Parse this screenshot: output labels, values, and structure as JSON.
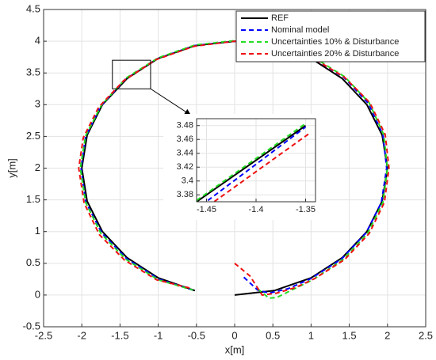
{
  "chart_data": [
    {
      "type": "line",
      "xlabel": "x[m]",
      "ylabel": "y[m]",
      "xlim": [
        -2.5,
        2.5
      ],
      "xticks": [
        -2.5,
        -2,
        -1.5,
        -1,
        -0.5,
        0,
        0.5,
        1,
        1.5,
        2,
        2.5
      ],
      "ylim": [
        -0.5,
        4.5
      ],
      "yticks": [
        -0.5,
        0,
        0.5,
        1,
        1.5,
        2,
        2.5,
        3,
        3.5,
        4,
        4.5
      ],
      "grid": true,
      "legend": "northeast",
      "series": [
        {
          "name": "REF",
          "color": "#000000",
          "dash": "solid",
          "x": [
            0,
            0.52,
            1,
            1.41,
            1.73,
            1.93,
            2,
            1.93,
            1.73,
            1.41,
            1,
            0.52,
            0,
            -0.52,
            -1,
            -1.41,
            -1.73,
            -1.93,
            -2,
            -1.93,
            -1.73,
            -1.41,
            -1,
            -0.52
          ],
          "values": [
            0,
            0.07,
            0.27,
            0.59,
            1,
            1.48,
            2,
            2.52,
            3,
            3.41,
            3.73,
            3.93,
            4,
            3.93,
            3.73,
            3.41,
            3,
            2.52,
            2,
            1.48,
            1,
            0.59,
            0.27,
            0.07
          ]
        },
        {
          "name": "Nominal model",
          "color": "#0000ff",
          "dash": "dashed",
          "x": [
            0.12,
            0.3,
            0.45,
            0.7,
            1,
            1.4,
            1.72,
            1.92,
            1.99,
            1.94,
            1.75,
            1.43,
            1.02,
            0.53,
            0,
            -0.53,
            -1.02,
            -1.43,
            -1.75,
            -1.95,
            -2.01,
            -1.95,
            -1.74,
            -1.41,
            -0.99,
            -0.55
          ],
          "values": [
            0.28,
            0.08,
            0.03,
            0.1,
            0.26,
            0.57,
            0.98,
            1.46,
            2,
            2.53,
            3.02,
            3.43,
            3.74,
            3.94,
            4,
            3.93,
            3.72,
            3.4,
            2.98,
            2.5,
            2,
            1.47,
            0.98,
            0.57,
            0.25,
            0.08
          ]
        },
        {
          "name": "Uncertainties 10% & Disturbance",
          "color": "#22dd22",
          "dash": "dashed",
          "x": [
            0.3,
            0.45,
            0.55,
            0.75,
            1.02,
            1.42,
            1.74,
            1.94,
            2.0,
            1.95,
            1.76,
            1.44,
            1.03,
            0.54,
            0,
            -0.52,
            -1.0,
            -1.42,
            -1.74,
            -1.95,
            -2.02,
            -1.95,
            -1.75,
            -1.42,
            -1.0,
            -0.55
          ],
          "values": [
            0.1,
            -0.05,
            -0.04,
            0.08,
            0.24,
            0.56,
            0.97,
            1.46,
            2,
            2.53,
            3.03,
            3.44,
            3.75,
            3.95,
            4.01,
            3.94,
            3.74,
            3.42,
            3.0,
            2.51,
            2,
            1.46,
            0.97,
            0.56,
            0.24,
            0.08
          ]
        },
        {
          "name": "Uncertainties 20% & Disturbance",
          "color": "#ee1111",
          "dash": "dashed",
          "x": [
            0,
            0.2,
            0.36,
            0.55,
            0.8,
            1.05,
            1.44,
            1.76,
            1.96,
            2.02,
            1.97,
            1.77,
            1.44,
            1.02,
            0.52,
            0,
            -0.53,
            -1.03,
            -1.45,
            -1.78,
            -1.98,
            -2.04,
            -1.97,
            -1.77,
            -1.44,
            -1.02,
            -0.55
          ],
          "values": [
            0.5,
            0.3,
            0,
            0.03,
            0.12,
            0.26,
            0.56,
            0.97,
            1.46,
            2,
            2.53,
            3.03,
            3.43,
            3.74,
            3.94,
            4.0,
            3.92,
            3.71,
            3.38,
            2.96,
            2.48,
            2,
            1.45,
            0.95,
            0.55,
            0.24,
            0.1
          ]
        }
      ]
    },
    {
      "type": "line",
      "xlim": [
        -1.46,
        -1.34
      ],
      "xticks": [
        -1.45,
        -1.4,
        -1.35
      ],
      "ylim": [
        3.37,
        3.49
      ],
      "yticks": [
        3.38,
        3.4,
        3.42,
        3.44,
        3.46,
        3.48
      ],
      "grid": true,
      "series": [
        {
          "color": "#000000",
          "dash": "solid",
          "x": [
            -1.46,
            -1.35
          ],
          "values": [
            3.37,
            3.48
          ]
        },
        {
          "color": "#0000ff",
          "dash": "dashed",
          "x": [
            -1.455,
            -1.35
          ],
          "values": [
            3.365,
            3.478
          ]
        },
        {
          "color": "#22dd22",
          "dash": "dashed",
          "x": [
            -1.46,
            -1.35
          ],
          "values": [
            3.372,
            3.483
          ]
        },
        {
          "color": "#ee1111",
          "dash": "dashed",
          "x": [
            -1.455,
            -1.345
          ],
          "values": [
            3.357,
            3.47
          ]
        }
      ]
    }
  ]
}
